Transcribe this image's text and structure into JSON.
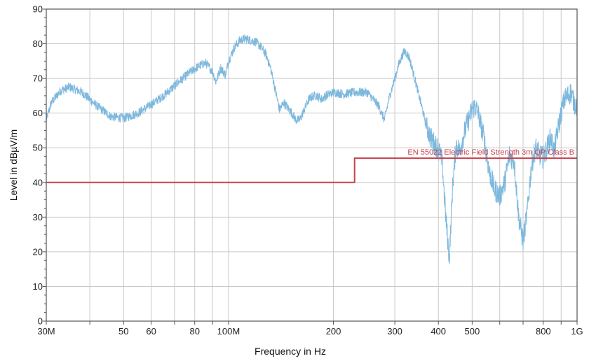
{
  "chart_data": {
    "type": "line",
    "xlabel": "Frequency in Hz",
    "ylabel": "Level in dBµV/m",
    "x_scale": "log",
    "xlim": [
      30,
      1000
    ],
    "ylim": [
      0,
      90
    ],
    "grid": true,
    "y_ticks": [
      0,
      10,
      20,
      30,
      40,
      50,
      60,
      70,
      80,
      90
    ],
    "x_ticks": [
      {
        "value": 30,
        "label": "30M"
      },
      {
        "value": 40,
        "label": ""
      },
      {
        "value": 50,
        "label": "50"
      },
      {
        "value": 60,
        "label": "60"
      },
      {
        "value": 70,
        "label": ""
      },
      {
        "value": 80,
        "label": "80"
      },
      {
        "value": 90,
        "label": ""
      },
      {
        "value": 100,
        "label": "100M"
      },
      {
        "value": 200,
        "label": "200"
      },
      {
        "value": 300,
        "label": "300"
      },
      {
        "value": 400,
        "label": "400"
      },
      {
        "value": 500,
        "label": "500"
      },
      {
        "value": 600,
        "label": ""
      },
      {
        "value": 700,
        "label": ""
      },
      {
        "value": 800,
        "label": "800"
      },
      {
        "value": 900,
        "label": ""
      },
      {
        "value": 1000,
        "label": "1G"
      }
    ],
    "series": [
      {
        "color": "#7db8dd",
        "x": [
          30,
          31,
          33,
          35,
          38,
          42,
          46,
          50,
          55,
          60,
          66,
          72,
          78,
          82,
          86,
          90,
          92,
          95,
          98,
          100,
          104,
          108,
          112,
          116,
          120,
          124,
          128,
          132,
          136,
          140,
          144,
          148,
          152,
          156,
          160,
          165,
          170,
          175,
          180,
          185,
          190,
          200,
          215,
          230,
          250,
          260,
          270,
          280,
          290,
          300,
          310,
          320,
          330,
          340,
          350,
          360,
          370,
          380,
          390,
          400,
          410,
          420,
          430,
          440,
          450,
          460,
          480,
          500,
          510,
          520,
          540,
          560,
          580,
          600,
          620,
          640,
          660,
          670,
          680,
          700,
          720,
          740,
          760,
          780,
          800,
          820,
          840,
          860,
          880,
          900,
          920,
          940,
          960,
          980,
          1000
        ],
        "y": [
          58,
          63,
          66.5,
          67.5,
          66,
          62,
          59,
          58.5,
          60,
          62.5,
          65.5,
          69,
          72,
          73.5,
          74.5,
          72,
          69,
          73,
          71,
          75,
          79,
          81,
          81.5,
          81,
          80.5,
          79,
          77,
          73,
          67,
          61,
          63,
          61.5,
          60,
          58,
          58,
          61,
          64,
          65,
          65,
          64,
          65,
          66,
          65.5,
          66,
          66,
          64,
          62,
          58,
          65,
          70,
          75,
          78,
          76,
          71,
          66,
          61,
          56,
          53,
          51,
          50,
          46,
          30,
          18,
          40,
          51,
          49,
          56,
          61,
          62,
          60,
          53,
          43,
          38,
          36,
          40,
          48,
          46,
          38,
          30,
          23,
          32,
          45,
          50,
          48,
          47,
          50,
          53,
          49,
          55,
          60,
          64,
          65,
          66,
          63,
          62
        ]
      }
    ],
    "limit_lines": [
      {
        "label": "EN 55022 Electric Field Strength 3m QP Class B",
        "color": "#c8414b",
        "segments": [
          {
            "x": [
              30,
              230
            ],
            "y": 40
          },
          {
            "x": [
              230,
              1000
            ],
            "y": 47
          }
        ]
      }
    ]
  }
}
